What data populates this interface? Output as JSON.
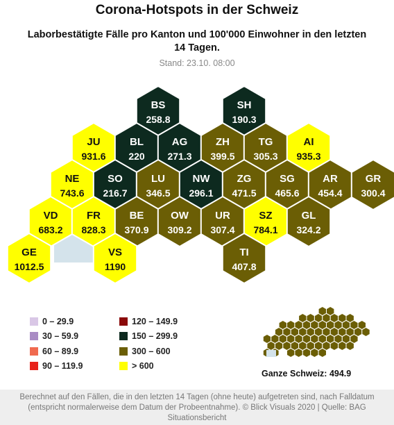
{
  "title": "Corona-Hotspots in der Schweiz",
  "subtitle": "Laborbestätigte Fälle pro Kanton und 100'000 Einwohner in den letzten 14 Tagen.",
  "stand": "Stand: 23.10. 08:00",
  "colors": {
    "c0": "#d9c7e6",
    "c30": "#a98cc4",
    "c60": "#f06a4f",
    "c90": "#e8221a",
    "c120": "#8b0a0a",
    "c150": "#0d2a1f",
    "c300": "#6b5e05",
    "c600": "#ffff00",
    "lake": "#d4e3eb"
  },
  "cantons": [
    {
      "code": "BS",
      "value": "258.8",
      "bin": "c150"
    },
    {
      "code": "SH",
      "value": "190.3",
      "bin": "c150"
    },
    {
      "code": "JU",
      "value": "931.6",
      "bin": "c600"
    },
    {
      "code": "BL",
      "value": "220",
      "bin": "c150"
    },
    {
      "code": "AG",
      "value": "271.3",
      "bin": "c150"
    },
    {
      "code": "ZH",
      "value": "399.5",
      "bin": "c300"
    },
    {
      "code": "TG",
      "value": "305.3",
      "bin": "c300"
    },
    {
      "code": "AI",
      "value": "935.3",
      "bin": "c600"
    },
    {
      "code": "NE",
      "value": "743.6",
      "bin": "c600"
    },
    {
      "code": "SO",
      "value": "216.7",
      "bin": "c150"
    },
    {
      "code": "LU",
      "value": "346.5",
      "bin": "c300"
    },
    {
      "code": "NW",
      "value": "296.1",
      "bin": "c150"
    },
    {
      "code": "ZG",
      "value": "471.5",
      "bin": "c300"
    },
    {
      "code": "SG",
      "value": "465.6",
      "bin": "c300"
    },
    {
      "code": "AR",
      "value": "454.4",
      "bin": "c300"
    },
    {
      "code": "GR",
      "value": "300.4",
      "bin": "c300"
    },
    {
      "code": "VD",
      "value": "683.2",
      "bin": "c600"
    },
    {
      "code": "FR",
      "value": "828.3",
      "bin": "c600"
    },
    {
      "code": "BE",
      "value": "370.9",
      "bin": "c300"
    },
    {
      "code": "OW",
      "value": "309.2",
      "bin": "c300"
    },
    {
      "code": "UR",
      "value": "307.4",
      "bin": "c300"
    },
    {
      "code": "SZ",
      "value": "784.1",
      "bin": "c600"
    },
    {
      "code": "GL",
      "value": "324.2",
      "bin": "c300"
    },
    {
      "code": "GE",
      "value": "1012.5",
      "bin": "c600"
    },
    {
      "code": "VS",
      "value": "1190",
      "bin": "c600"
    },
    {
      "code": "TI",
      "value": "407.8",
      "bin": "c300"
    }
  ],
  "legend": {
    "left": [
      {
        "label": "0 – 29.9",
        "bin": "c0"
      },
      {
        "label": "30 – 59.9",
        "bin": "c30"
      },
      {
        "label": "60 – 89.9",
        "bin": "c60"
      },
      {
        "label": "90 – 119.9",
        "bin": "c90"
      }
    ],
    "right": [
      {
        "label": "120 – 149.9",
        "bin": "c120"
      },
      {
        "label": "150 – 299.9",
        "bin": "c150"
      },
      {
        "label": "300 – 600",
        "bin": "c300"
      },
      {
        "label": "> 600",
        "bin": "c600"
      }
    ]
  },
  "total": "Ganze Schweiz: 494.9",
  "footer": "Berechnet auf den Fällen, die in den letzten 14 Tagen (ohne heute) aufgetreten sind, nach Falldatum (entspricht normalerweise dem Datum der Probeentnahme). © Blick Visuals 2020 | Quelle: BAG Situationsbericht"
}
